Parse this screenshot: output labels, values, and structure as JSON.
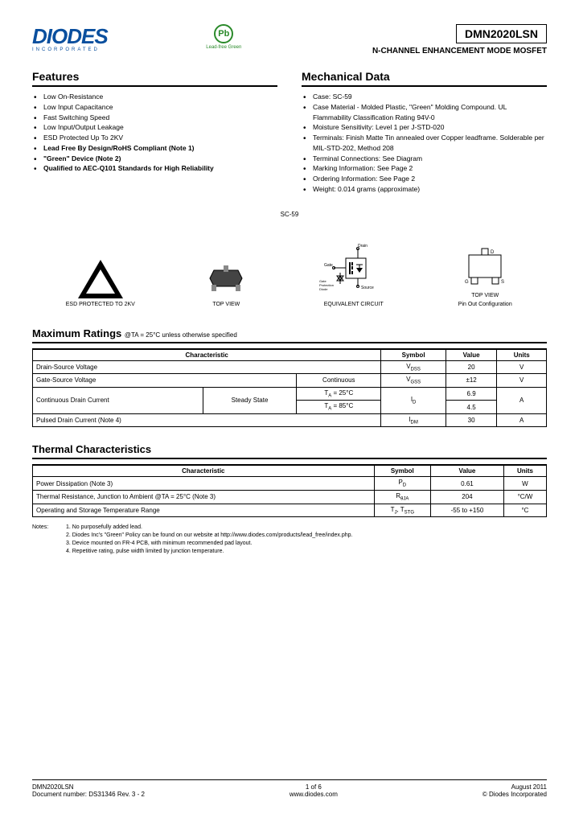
{
  "header": {
    "logo": "DIODES",
    "logo_sub": "INCORPORATED",
    "pb_text": "Pb",
    "pb_label": "Lead-free Green",
    "part_number": "DMN2020LSN",
    "part_desc": "N-CHANNEL ENHANCEMENT MODE MOSFET"
  },
  "features": {
    "title": "Features",
    "items": [
      {
        "text": "Low On-Resistance",
        "bold": false
      },
      {
        "text": "Low Input Capacitance",
        "bold": false
      },
      {
        "text": "Fast Switching Speed",
        "bold": false
      },
      {
        "text": "Low Input/Output Leakage",
        "bold": false
      },
      {
        "text": "ESD Protected Up To 2KV",
        "bold": false
      },
      {
        "text": "Lead Free By Design/RoHS Compliant (Note 1)",
        "bold": true
      },
      {
        "text": "\"Green\" Device (Note 2)",
        "bold": true
      },
      {
        "text": "Qualified to AEC-Q101 Standards for High Reliability",
        "bold": true
      }
    ]
  },
  "mechanical": {
    "title": "Mechanical Data",
    "items": [
      "Case: SC-59",
      "Case Material - Molded Plastic, \"Green\" Molding Compound. UL Flammability Classification Rating 94V-0",
      "Moisture Sensitivity: Level 1 per J-STD-020",
      "Terminals: Finish Matte Tin annealed over Copper leadframe. Solderable per MIL-STD-202, Method 208",
      "Terminal Connections: See Diagram",
      "Marking Information: See Page 2",
      "Ordering Information: See Page 2",
      "Weight: 0.014 grams (approximate)"
    ]
  },
  "diagrams": {
    "sc_label": "SC-59",
    "esd_label": "ESD PROTECTED TO 2KV",
    "topview_label": "TOP VIEW",
    "circuit_label": "EQUIVALENT CIRCUIT",
    "circuit_drain": "Drain",
    "circuit_gate": "Gate",
    "circuit_source": "Source",
    "circuit_gpd": "Gate Protection Diode",
    "pinout_label1": "TOP VIEW",
    "pinout_label2": "Pin Out Configuration",
    "pin_d": "D",
    "pin_g": "G",
    "pin_s": "S"
  },
  "max_ratings": {
    "title": "Maximum Ratings",
    "condition": "@TA = 25°C unless otherwise specified",
    "headers": [
      "Characteristic",
      "Symbol",
      "Value",
      "Units"
    ],
    "rows": [
      {
        "char": "Drain-Source Voltage",
        "sub": "",
        "cond": "",
        "symbol": "VDSS",
        "value": "20",
        "units": "V"
      },
      {
        "char": "Gate-Source Voltage",
        "sub": "Continuous",
        "cond": "",
        "symbol": "VGSS",
        "value": "±12",
        "units": "V"
      },
      {
        "char": "Continuous Drain Current",
        "sub": "Steady State",
        "cond1": "TA = 25°C",
        "cond2": "TA = 85°C",
        "symbol": "ID",
        "value1": "6.9",
        "value2": "4.5",
        "units": "A"
      },
      {
        "char": "Pulsed Drain Current (Note 4)",
        "sub": "",
        "cond": "",
        "symbol": "IDM",
        "value": "30",
        "units": "A"
      }
    ]
  },
  "thermal": {
    "title": "Thermal Characteristics",
    "headers": [
      "Characteristic",
      "Symbol",
      "Value",
      "Units"
    ],
    "rows": [
      {
        "char": "Power Dissipation (Note 3)",
        "symbol": "PD",
        "value": "0.61",
        "units": "W"
      },
      {
        "char": "Thermal Resistance, Junction to Ambient @TA = 25°C (Note 3)",
        "symbol": "RθJA",
        "value": "204",
        "units": "°C/W"
      },
      {
        "char": "Operating and Storage Temperature Range",
        "symbol": "TJ, TSTG",
        "value": "-55 to +150",
        "units": "°C"
      }
    ]
  },
  "notes": {
    "label": "Notes:",
    "items": [
      "1. No purposefully added lead.",
      "2. Diodes Inc's \"Green\" Policy can be found on our website at http://www.diodes.com/products/lead_free/index.php.",
      "3. Device mounted on FR-4 PCB, with minimum recommended pad layout.",
      "4. Repetitive rating, pulse width limited by junction temperature."
    ]
  },
  "footer": {
    "left1": "DMN2020LSN",
    "left2": "Document number: DS31346 Rev. 3 - 2",
    "center1": "1 of 6",
    "center2": "www.diodes.com",
    "right1": "August 2011",
    "right2": "© Diodes Incorporated"
  }
}
